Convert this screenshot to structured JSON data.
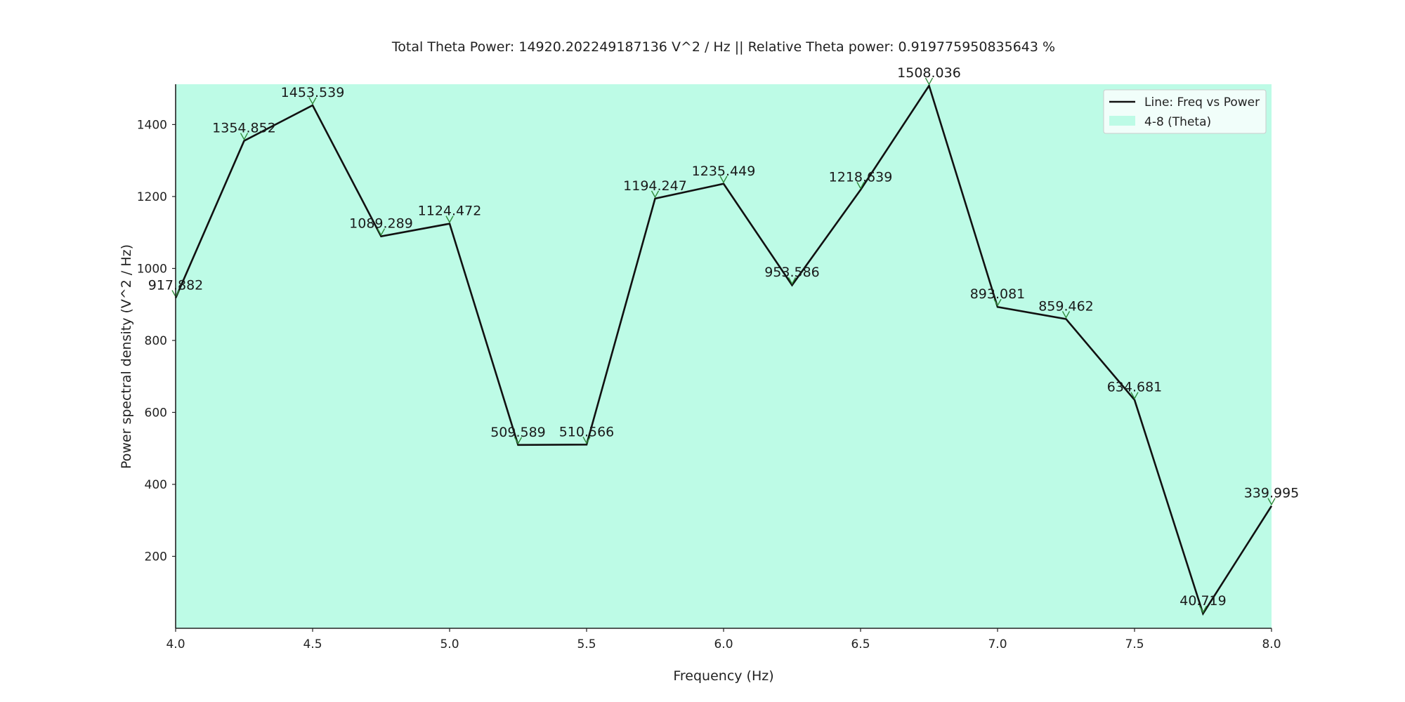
{
  "chart_data": {
    "type": "line",
    "title": "Total Theta Power: 14920.202249187136 V^2 / Hz || Relative Theta power: 0.919775950835643 %",
    "xlabel": "Frequency (Hz)",
    "ylabel": "Power spectral density (V^2 / Hz)",
    "xlim": [
      4.0,
      8.0
    ],
    "ylim": [
      0,
      1512
    ],
    "x_ticks": [
      "4.0",
      "4.5",
      "5.0",
      "5.5",
      "6.0",
      "6.5",
      "7.0",
      "7.5",
      "8.0"
    ],
    "y_ticks": [
      "200",
      "400",
      "600",
      "800",
      "1000",
      "1200",
      "1400"
    ],
    "grid": false,
    "legend_position": "top-right",
    "band": {
      "name": "4-8 (Theta)",
      "from": 4.0,
      "to": 8.0,
      "color": "#bdfbe6"
    },
    "series": [
      {
        "name": "Line: Freq vs Power",
        "color": "#111111",
        "marker_color": "#2e8b3a",
        "x": [
          4.0,
          4.25,
          4.5,
          4.75,
          5.0,
          5.25,
          5.5,
          5.75,
          6.0,
          6.25,
          6.5,
          6.75,
          7.0,
          7.25,
          7.5,
          7.75,
          8.0
        ],
        "values": [
          917.882,
          1354.852,
          1453.539,
          1089.289,
          1124.472,
          509.589,
          510.566,
          1194.247,
          1235.449,
          953.586,
          1218.639,
          1508.036,
          893.081,
          859.462,
          634.681,
          40.719,
          339.995
        ],
        "labels": [
          "917.882",
          "1354.852",
          "1453.539",
          "1089.289",
          "1124.472",
          "509.589",
          "510.566",
          "1194.247",
          "1235.449",
          "953.586",
          "1218.639",
          "1508.036",
          "893.081",
          "859.462",
          "634.681",
          "40.719",
          "339.995"
        ]
      }
    ]
  }
}
